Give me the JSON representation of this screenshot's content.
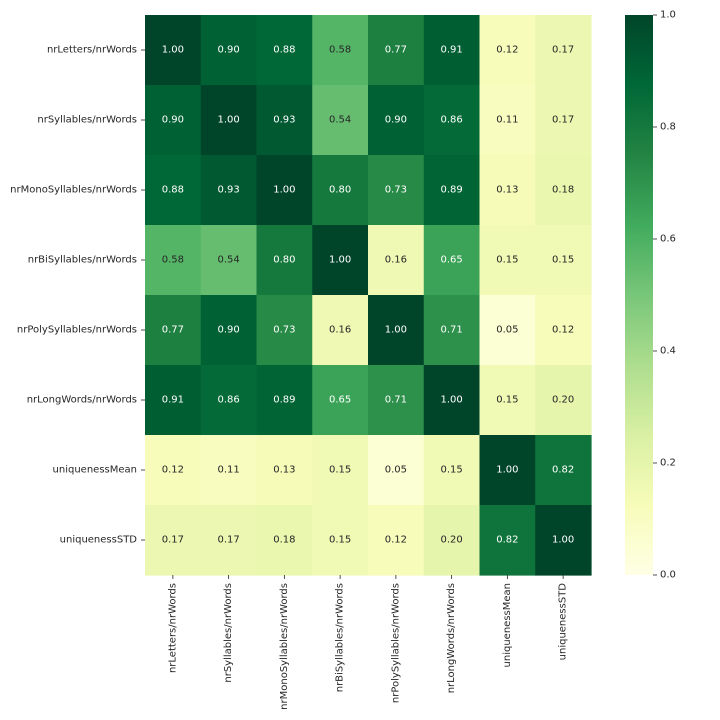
{
  "chart_data": {
    "type": "heatmap",
    "title": "",
    "xlabel": "",
    "ylabel": "",
    "x_categories": [
      "nrLetters/nrWords",
      "nrSyllables/nrWords",
      "nrMonoSyllables/nrWords",
      "nrBiSyllables/nrWords",
      "nrPolySyllables/nrWords",
      "nrLongWords/nrWords",
      "uniquenessMean",
      "uniquenessSTD"
    ],
    "y_categories": [
      "nrLetters/nrWords",
      "nrSyllables/nrWords",
      "nrMonoSyllables/nrWords",
      "nrBiSyllables/nrWords",
      "nrPolySyllables/nrWords",
      "nrLongWords/nrWords",
      "uniquenessMean",
      "uniquenessSTD"
    ],
    "values": [
      [
        1.0,
        0.9,
        0.88,
        0.58,
        0.77,
        0.91,
        0.12,
        0.17
      ],
      [
        0.9,
        1.0,
        0.93,
        0.54,
        0.9,
        0.86,
        0.11,
        0.17
      ],
      [
        0.88,
        0.93,
        1.0,
        0.8,
        0.73,
        0.89,
        0.13,
        0.18
      ],
      [
        0.58,
        0.54,
        0.8,
        1.0,
        0.16,
        0.65,
        0.15,
        0.15
      ],
      [
        0.77,
        0.9,
        0.73,
        0.16,
        1.0,
        0.71,
        0.05,
        0.12
      ],
      [
        0.91,
        0.86,
        0.89,
        0.65,
        0.71,
        1.0,
        0.15,
        0.2
      ],
      [
        0.12,
        0.11,
        0.13,
        0.15,
        0.05,
        0.15,
        1.0,
        0.82
      ],
      [
        0.17,
        0.17,
        0.18,
        0.15,
        0.12,
        0.2,
        0.82,
        1.0
      ]
    ],
    "value_format": "0.00",
    "colormap": "YlGn",
    "colorbar": {
      "range": [
        0.0,
        1.0
      ],
      "ticks": [
        "0.0",
        "0.2",
        "0.4",
        "0.6",
        "0.8",
        "1.0"
      ],
      "tick_values": [
        0.0,
        0.2,
        0.4,
        0.6,
        0.8,
        1.0
      ]
    },
    "colormap_stops": [
      "#ffffe5",
      "#f7fcb9",
      "#d9f0a3",
      "#addd8e",
      "#78c679",
      "#41ab5d",
      "#238443",
      "#006837",
      "#004529"
    ],
    "annotations": true,
    "grid": false
  }
}
